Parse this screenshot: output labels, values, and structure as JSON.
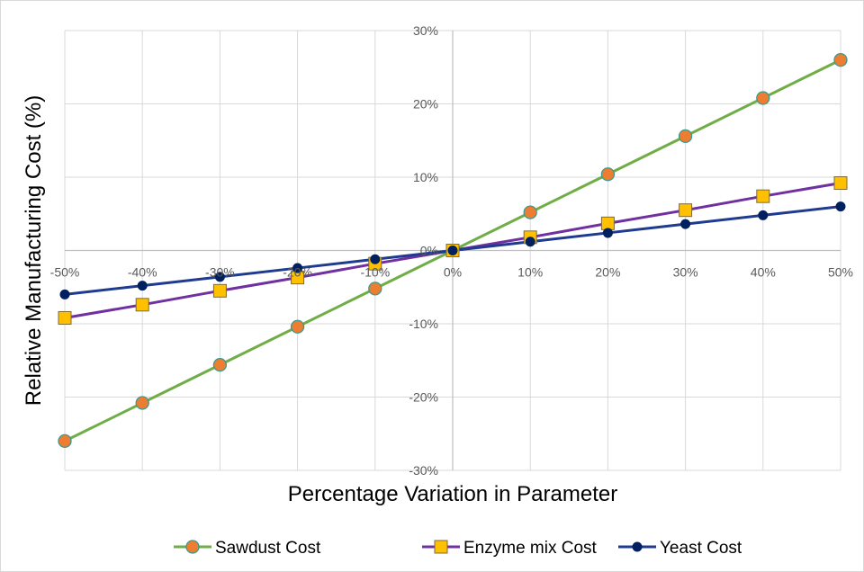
{
  "chart_data": {
    "type": "line",
    "title": "",
    "xlabel": "Percentage Variation in Parameter",
    "ylabel": "Relative Manufacturing Cost (%)",
    "x": [
      -50,
      -40,
      -30,
      -20,
      -10,
      0,
      10,
      20,
      30,
      40,
      50
    ],
    "x_tick_labels": [
      "-50%",
      "-40%",
      "-30%",
      "-20%",
      "-10%",
      "0%",
      "10%",
      "20%",
      "30%",
      "40%",
      "50%"
    ],
    "y_ticks": [
      -30,
      -20,
      -10,
      0,
      10,
      20,
      30
    ],
    "y_tick_labels": [
      "-30%",
      "-20%",
      "-10%",
      "0%",
      "10%",
      "20%",
      "30%"
    ],
    "xlim": [
      -50,
      50
    ],
    "ylim": [
      -30,
      30
    ],
    "grid": true,
    "legend_position": "bottom",
    "series": [
      {
        "name": "Sawdust Cost",
        "marker": "circle",
        "line_color": "#70ad47",
        "marker_fill": "#ed7d31",
        "marker_stroke": "#3a9a8f",
        "values": [
          -26.0,
          -20.8,
          -15.6,
          -10.4,
          -5.2,
          0,
          5.2,
          10.4,
          15.6,
          20.8,
          26.0
        ]
      },
      {
        "name": "Enzyme mix Cost",
        "marker": "square",
        "line_color": "#7030a0",
        "marker_fill": "#ffc000",
        "marker_stroke": "#7f6a3a",
        "values": [
          -9.2,
          -7.4,
          -5.5,
          -3.7,
          -1.8,
          0,
          1.8,
          3.7,
          5.5,
          7.4,
          9.2
        ]
      },
      {
        "name": "Yeast Cost",
        "marker": "circle-small",
        "line_color": "#1f3b8f",
        "marker_fill": "#002060",
        "marker_stroke": "#002060",
        "values": [
          -6.0,
          -4.8,
          -3.6,
          -2.4,
          -1.2,
          0,
          1.2,
          2.4,
          3.6,
          4.8,
          6.0
        ]
      }
    ]
  }
}
